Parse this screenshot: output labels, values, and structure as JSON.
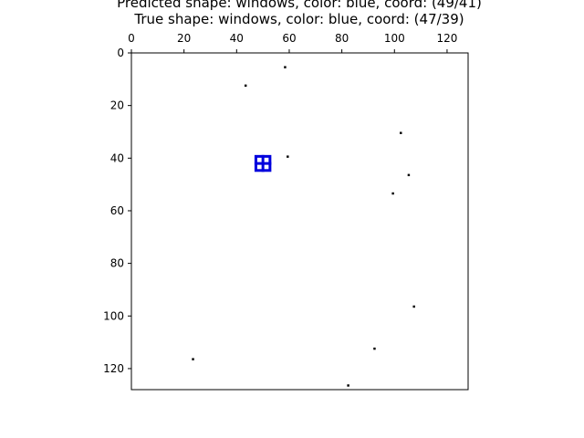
{
  "chart_data": {
    "type": "scatter",
    "title_lines": [
      "Predicted shape: windows, color: blue, coord: (49/41)",
      "True shape: windows, color: blue, coord: (47/39)"
    ],
    "xlabel": "",
    "ylabel": "",
    "x_axis_position": "top",
    "y_axis_inverted": true,
    "xlim": [
      0,
      128
    ],
    "ylim": [
      128,
      0
    ],
    "x_ticks": [
      0,
      20,
      40,
      60,
      80,
      100,
      120
    ],
    "y_ticks": [
      0,
      20,
      40,
      60,
      80,
      100,
      120
    ],
    "grid": false,
    "points": [
      {
        "x": 58,
        "y": 5
      },
      {
        "x": 43,
        "y": 12
      },
      {
        "x": 102,
        "y": 30
      },
      {
        "x": 59,
        "y": 39
      },
      {
        "x": 105,
        "y": 46
      },
      {
        "x": 99,
        "y": 53
      },
      {
        "x": 107,
        "y": 96
      },
      {
        "x": 92,
        "y": 112
      },
      {
        "x": 23,
        "y": 116
      },
      {
        "x": 82,
        "y": 126
      }
    ],
    "points_color": "#000000",
    "shape": {
      "name": "windows",
      "color": "#0000dd",
      "x": 50,
      "y": 42
    }
  }
}
